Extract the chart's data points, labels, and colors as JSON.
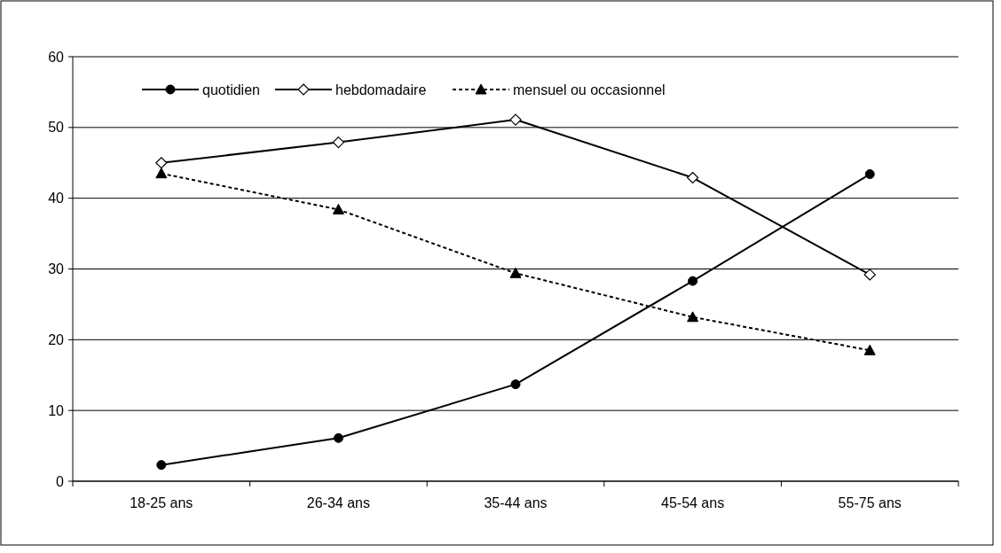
{
  "chart_data": {
    "type": "line",
    "categories": [
      "18-25 ans",
      "26-34 ans",
      "35-44 ans",
      "45-54 ans",
      "55-75 ans"
    ],
    "series": [
      {
        "name": "quotidien",
        "color": "#000000",
        "marker": "circle",
        "line_style": "solid",
        "values": [
          2.3,
          6.1,
          13.7,
          28.3,
          43.4
        ]
      },
      {
        "name": "hebdomadaire",
        "color": "#000000",
        "marker": "diamond",
        "line_style": "solid",
        "values": [
          45.0,
          47.9,
          51.1,
          42.9,
          29.2
        ]
      },
      {
        "name": "mensuel ou occasionnel",
        "color": "#000000",
        "marker": "triangle",
        "line_style": "dotted",
        "values": [
          43.5,
          38.4,
          29.4,
          23.2,
          18.5
        ]
      }
    ],
    "ylim": [
      0,
      60
    ],
    "yticks": [
      0,
      10,
      20,
      30,
      40,
      50,
      60
    ],
    "grid": "y",
    "legend": "top"
  }
}
